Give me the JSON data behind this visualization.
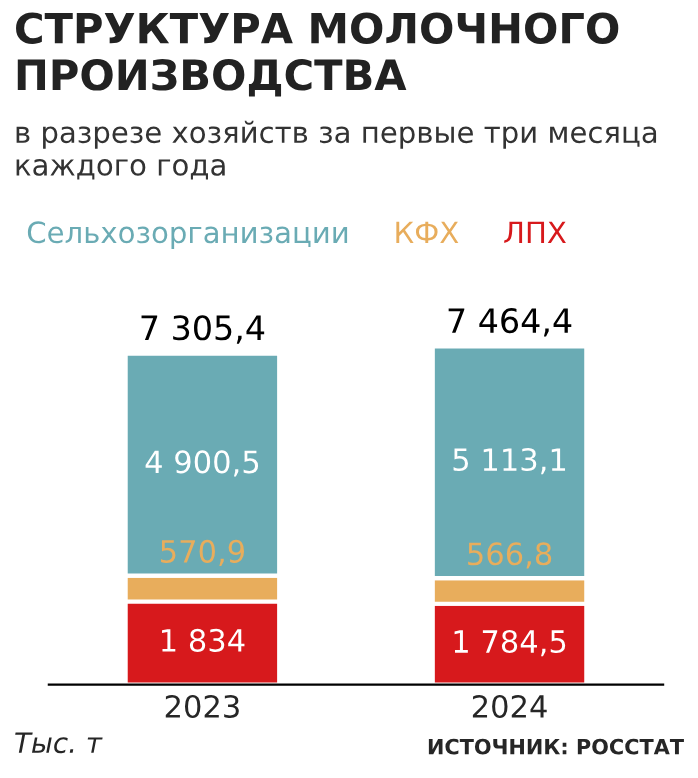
{
  "chart_data": {
    "type": "bar",
    "title": "СТРУКТУРА МОЛОЧНОГО ПРОИЗВОДСТВА",
    "subtitle": "в разрезе хозяйств за первые три месяца каждого года",
    "ylabel": "Тыс. т",
    "annotations": [
      "ИСТОЧНИК: РОССТАТ"
    ],
    "categories": [
      "2023",
      "2024"
    ],
    "stacked": true,
    "legend": "top left",
    "series": [
      {
        "name": "ЛПХ",
        "color": "#d7191c",
        "values": [
          1834,
          1784.5
        ],
        "value_labels": [
          "1 834",
          "1 784,5"
        ]
      },
      {
        "name": "КФХ",
        "color": "#e8ad5c",
        "values": [
          570.9,
          566.8
        ],
        "value_labels": [
          "570,9",
          "566,8"
        ]
      },
      {
        "name": "Сельхозорганизации",
        "color": "#6aabb4",
        "values": [
          4900.5,
          5113.1
        ],
        "value_labels": [
          "4 900,5",
          "5 113,1"
        ]
      }
    ],
    "totals": [
      "7 305,4",
      "7 464,4"
    ]
  }
}
